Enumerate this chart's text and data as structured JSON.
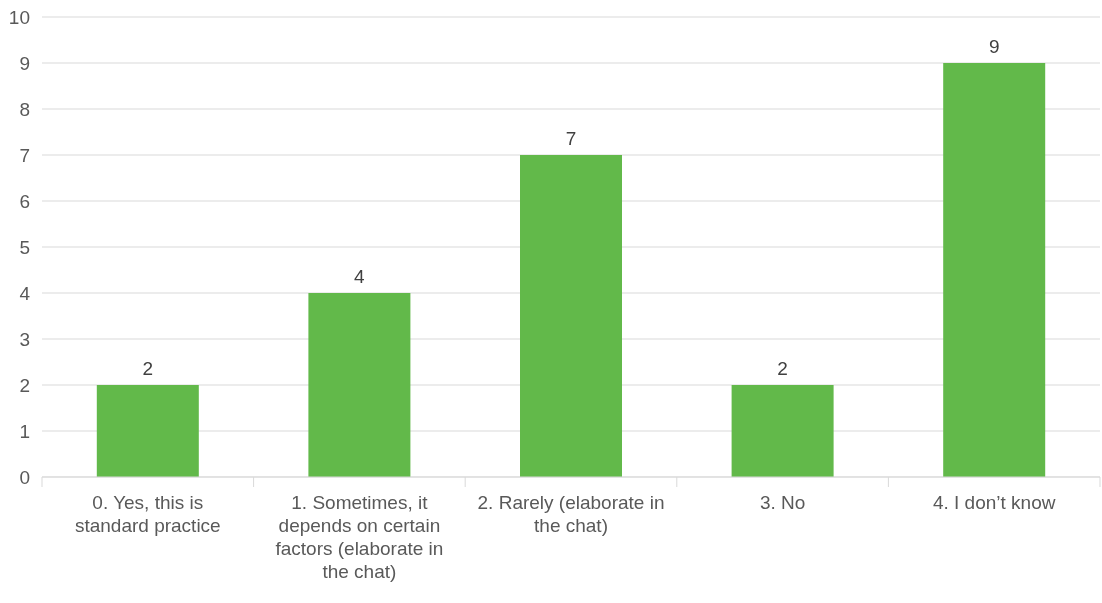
{
  "chart_data": {
    "type": "bar",
    "categories": [
      "0.   Yes, this is standard practice",
      "1.   Sometimes, it depends on certain factors (elaborate in the chat)",
      "2.   Rarely (elaborate in the chat)",
      "3.   No",
      "4.   I don’t know"
    ],
    "values": [
      2,
      4,
      7,
      2,
      9
    ],
    "color": "#62b94a",
    "ylim": [
      0,
      10
    ],
    "yticks": [
      0,
      1,
      2,
      3,
      4,
      5,
      6,
      7,
      8,
      9,
      10
    ],
    "grid": "y",
    "data_labels": true
  }
}
